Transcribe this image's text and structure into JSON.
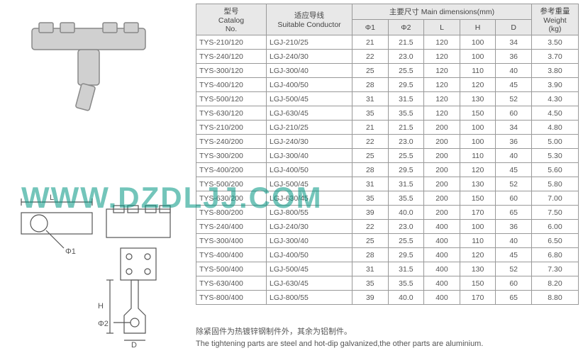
{
  "watermark": "WWW.DZDLJJ.COM",
  "diagram_labels": {
    "L": "L",
    "H": "H",
    "D": "D",
    "phi1": "Φ1",
    "phi2": "Φ2"
  },
  "table": {
    "headers": {
      "model_cn": "型号",
      "model_en": "Catalog",
      "model_sub": "No.",
      "conductor_cn": "适应导线",
      "conductor_en": "Suitable Conductor",
      "dims_cn": "主要尺寸 Main dimensions(mm)",
      "phi1": "Φ1",
      "phi2": "Φ2",
      "L": "L",
      "H": "H",
      "D": "D",
      "weight_cn": "参考重量",
      "weight_en": "Weight",
      "weight_unit": "(kg)"
    },
    "rows": [
      {
        "m": "TYS-210/120",
        "c": "LGJ-210/25",
        "p1": "21",
        "p2": "21.5",
        "L": "120",
        "H": "100",
        "D": "34",
        "w": "3.50"
      },
      {
        "m": "TYS-240/120",
        "c": "LGJ-240/30",
        "p1": "22",
        "p2": "23.0",
        "L": "120",
        "H": "100",
        "D": "36",
        "w": "3.70"
      },
      {
        "m": "TYS-300/120",
        "c": "LGJ-300/40",
        "p1": "25",
        "p2": "25.5",
        "L": "120",
        "H": "110",
        "D": "40",
        "w": "3.80"
      },
      {
        "m": "TYS-400/120",
        "c": "LGJ-400/50",
        "p1": "28",
        "p2": "29.5",
        "L": "120",
        "H": "120",
        "D": "45",
        "w": "3.90"
      },
      {
        "m": "TYS-500/120",
        "c": "LGJ-500/45",
        "p1": "31",
        "p2": "31.5",
        "L": "120",
        "H": "130",
        "D": "52",
        "w": "4.30"
      },
      {
        "m": "TYS-630/120",
        "c": "LGJ-630/45",
        "p1": "35",
        "p2": "35.5",
        "L": "120",
        "H": "150",
        "D": "60",
        "w": "4.50"
      },
      {
        "m": "TYS-210/200",
        "c": "LGJ-210/25",
        "p1": "21",
        "p2": "21.5",
        "L": "200",
        "H": "100",
        "D": "34",
        "w": "4.80"
      },
      {
        "m": "TYS-240/200",
        "c": "LGJ-240/30",
        "p1": "22",
        "p2": "23.0",
        "L": "200",
        "H": "100",
        "D": "36",
        "w": "5.00"
      },
      {
        "m": "TYS-300/200",
        "c": "LGJ-300/40",
        "p1": "25",
        "p2": "25.5",
        "L": "200",
        "H": "110",
        "D": "40",
        "w": "5.30"
      },
      {
        "m": "TYS-400/200",
        "c": "LGJ-400/50",
        "p1": "28",
        "p2": "29.5",
        "L": "200",
        "H": "120",
        "D": "45",
        "w": "5.60"
      },
      {
        "m": "TYS-500/200",
        "c": "LGJ-500/45",
        "p1": "31",
        "p2": "31.5",
        "L": "200",
        "H": "130",
        "D": "52",
        "w": "5.80"
      },
      {
        "m": "TYS-630/200",
        "c": "LGJ-630/45",
        "p1": "35",
        "p2": "35.5",
        "L": "200",
        "H": "150",
        "D": "60",
        "w": "7.00"
      },
      {
        "m": "TYS-800/200",
        "c": "LGJ-800/55",
        "p1": "39",
        "p2": "40.0",
        "L": "200",
        "H": "170",
        "D": "65",
        "w": "7.50"
      },
      {
        "m": "TYS-240/400",
        "c": "LGJ-240/30",
        "p1": "22",
        "p2": "23.0",
        "L": "400",
        "H": "100",
        "D": "36",
        "w": "6.00"
      },
      {
        "m": "TYS-300/400",
        "c": "LGJ-300/40",
        "p1": "25",
        "p2": "25.5",
        "L": "400",
        "H": "110",
        "D": "40",
        "w": "6.50"
      },
      {
        "m": "TYS-400/400",
        "c": "LGJ-400/50",
        "p1": "28",
        "p2": "29.5",
        "L": "400",
        "H": "120",
        "D": "45",
        "w": "6.80"
      },
      {
        "m": "TYS-500/400",
        "c": "LGJ-500/45",
        "p1": "31",
        "p2": "31.5",
        "L": "400",
        "H": "130",
        "D": "52",
        "w": "7.30"
      },
      {
        "m": "TYS-630/400",
        "c": "LGJ-630/45",
        "p1": "35",
        "p2": "35.5",
        "L": "400",
        "H": "150",
        "D": "60",
        "w": "8.20"
      },
      {
        "m": "TYS-800/400",
        "c": "LGJ-800/55",
        "p1": "39",
        "p2": "40.0",
        "L": "400",
        "H": "170",
        "D": "65",
        "w": "8.80"
      }
    ]
  },
  "footnote_cn": "除紧固件为热镀锌钢制件外，其余为铝制件。",
  "footnote_en": "The tightening parts are steel and hot-dip galvanized,the other parts are aluminium."
}
